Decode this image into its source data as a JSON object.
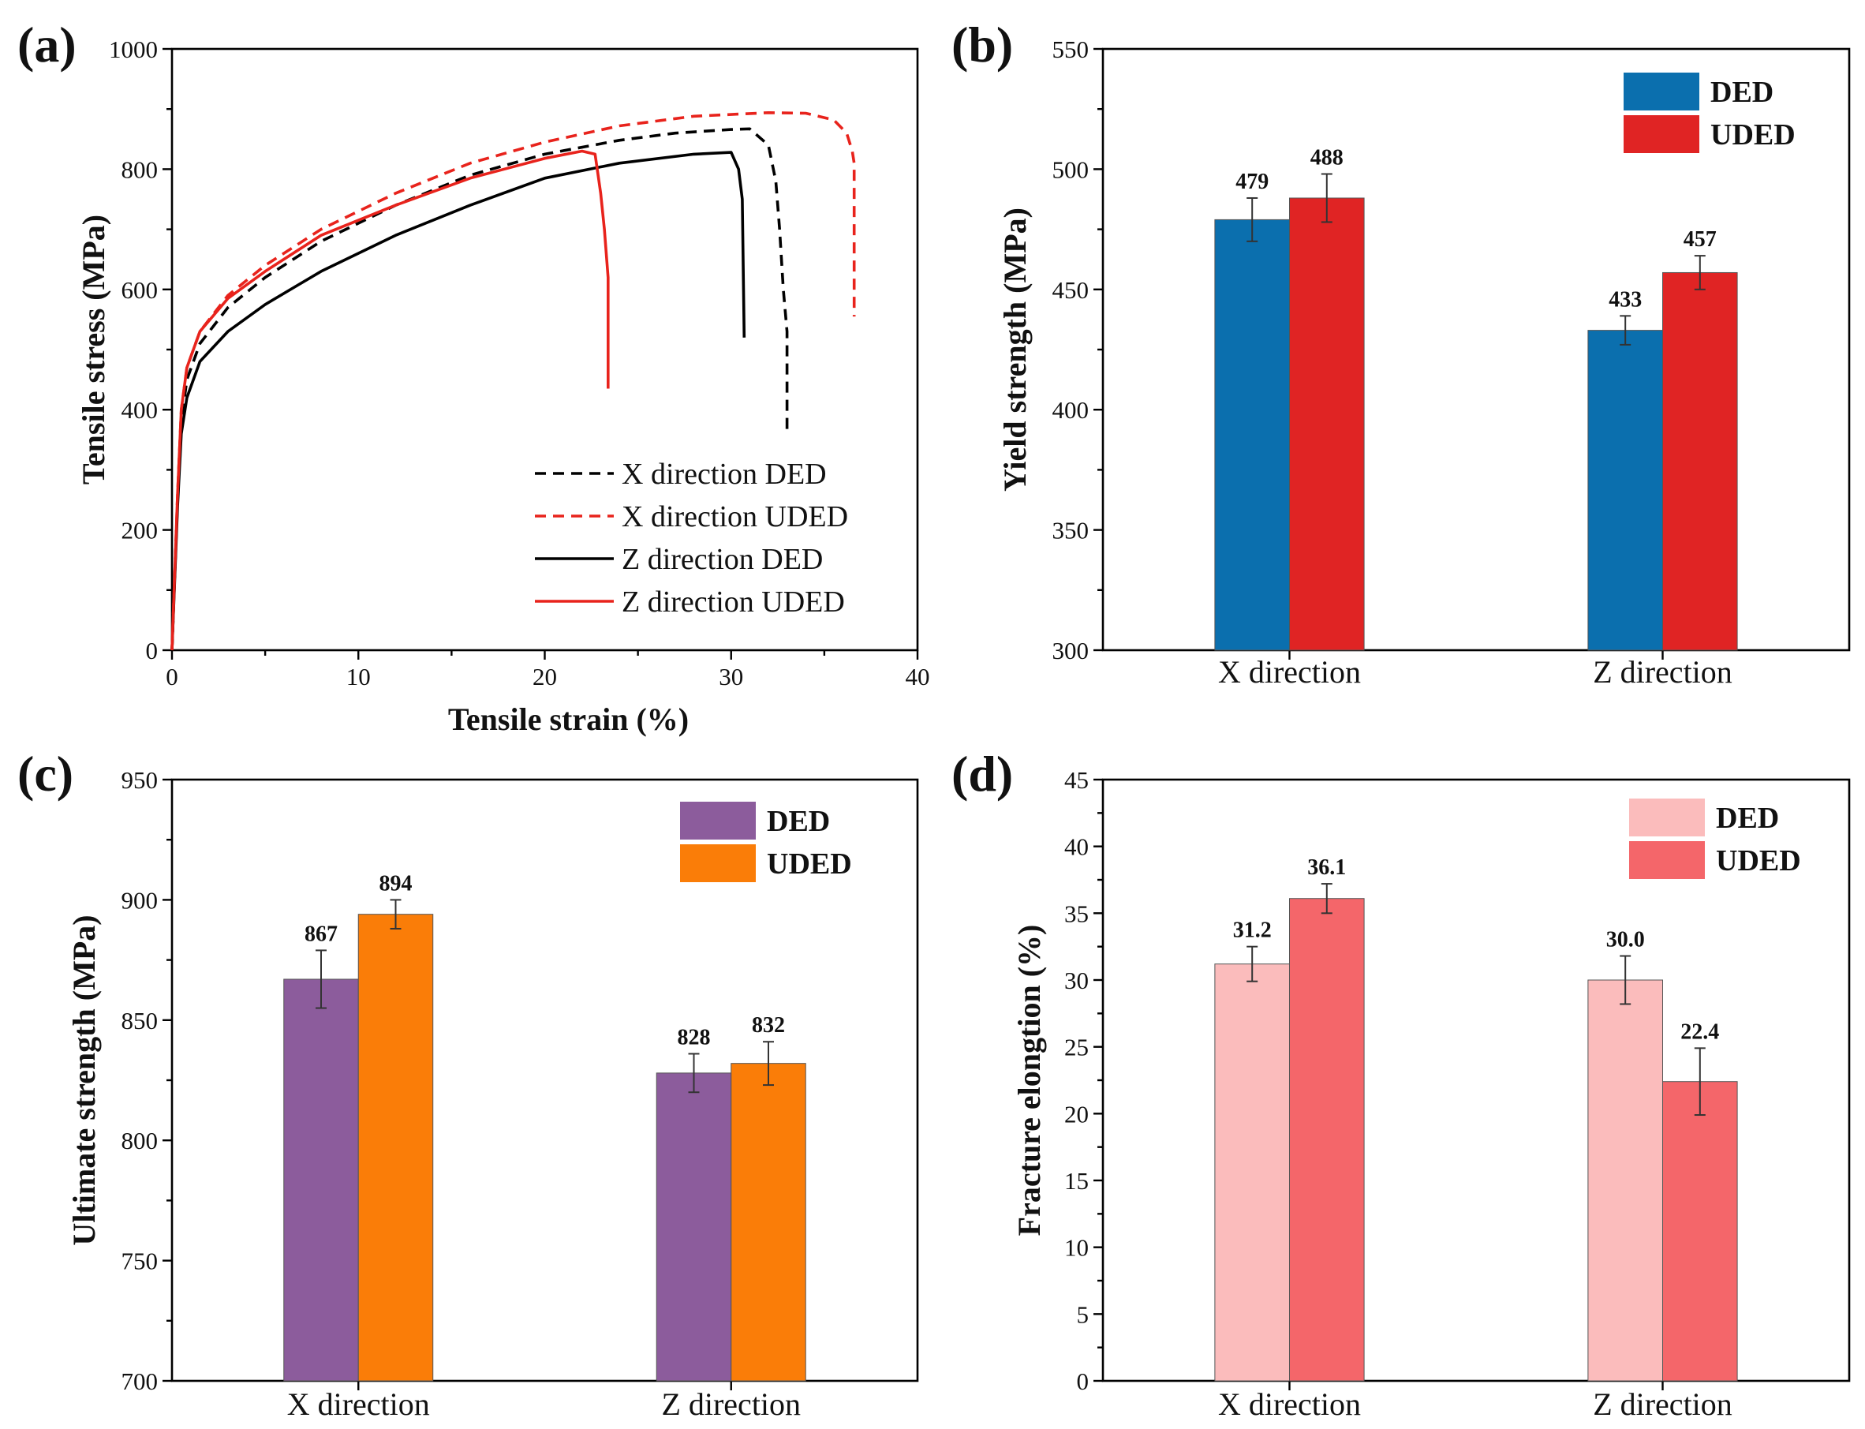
{
  "chart_data": [
    {
      "type": "line",
      "panel_label": "(a)",
      "xlabel": "Tensile strain (%)",
      "ylabel": "Tensile stress (MPa)",
      "xlim": [
        0,
        40
      ],
      "ylim": [
        0,
        1000
      ],
      "xticks": [
        0,
        10,
        20,
        30,
        40
      ],
      "yticks": [
        0,
        200,
        400,
        600,
        800,
        1000
      ],
      "legend_position": "bottom-right",
      "series": [
        {
          "name": "X direction DED",
          "color": "#000000",
          "style": "dashed",
          "points": [
            [
              0,
              0
            ],
            [
              0.3,
              250
            ],
            [
              0.5,
              380
            ],
            [
              0.8,
              450
            ],
            [
              1.5,
              510
            ],
            [
              3,
              570
            ],
            [
              5,
              620
            ],
            [
              8,
              680
            ],
            [
              12,
              740
            ],
            [
              16,
              790
            ],
            [
              20,
              825
            ],
            [
              24,
              848
            ],
            [
              27,
              860
            ],
            [
              30,
              866
            ],
            [
              31,
              867
            ],
            [
              32,
              840
            ],
            [
              32.4,
              780
            ],
            [
              32.6,
              700
            ],
            [
              32.8,
              600
            ],
            [
              33,
              530
            ],
            [
              33,
              365
            ]
          ]
        },
        {
          "name": "X direction UDED",
          "color": "#e8231c",
          "style": "dashed",
          "points": [
            [
              0,
              0
            ],
            [
              0.3,
              260
            ],
            [
              0.5,
              400
            ],
            [
              0.8,
              470
            ],
            [
              1.5,
              530
            ],
            [
              3,
              590
            ],
            [
              5,
              640
            ],
            [
              8,
              700
            ],
            [
              12,
              760
            ],
            [
              16,
              810
            ],
            [
              20,
              845
            ],
            [
              24,
              872
            ],
            [
              28,
              888
            ],
            [
              32,
              894
            ],
            [
              34,
              893
            ],
            [
              35.5,
              882
            ],
            [
              36.2,
              860
            ],
            [
              36.5,
              830
            ],
            [
              36.6,
              810
            ],
            [
              36.6,
              555
            ]
          ]
        },
        {
          "name": "Z direction DED",
          "color": "#000000",
          "style": "solid",
          "points": [
            [
              0,
              0
            ],
            [
              0.3,
              240
            ],
            [
              0.5,
              360
            ],
            [
              0.8,
              420
            ],
            [
              1.5,
              480
            ],
            [
              3,
              530
            ],
            [
              5,
              575
            ],
            [
              8,
              630
            ],
            [
              12,
              690
            ],
            [
              16,
              740
            ],
            [
              20,
              785
            ],
            [
              24,
              810
            ],
            [
              28,
              825
            ],
            [
              30,
              828
            ],
            [
              30.4,
              800
            ],
            [
              30.6,
              750
            ],
            [
              30.7,
              520
            ]
          ]
        },
        {
          "name": "Z direction UDED",
          "color": "#e8231c",
          "style": "solid",
          "points": [
            [
              0,
              0
            ],
            [
              0.3,
              260
            ],
            [
              0.5,
              400
            ],
            [
              0.8,
              470
            ],
            [
              1.5,
              530
            ],
            [
              3,
              585
            ],
            [
              5,
              630
            ],
            [
              8,
              690
            ],
            [
              12,
              740
            ],
            [
              16,
              785
            ],
            [
              20,
              818
            ],
            [
              22,
              830
            ],
            [
              22.7,
              825
            ],
            [
              23,
              760
            ],
            [
              23.2,
              700
            ],
            [
              23.4,
              620
            ],
            [
              23.4,
              435
            ]
          ]
        }
      ]
    },
    {
      "type": "bar",
      "panel_label": "(b)",
      "ylabel": "Yield strength (MPa)",
      "categories": [
        "X direction",
        "Z direction"
      ],
      "ylim": [
        300,
        550
      ],
      "yticks": [
        300,
        350,
        400,
        450,
        500,
        550
      ],
      "legend_position": "top-right",
      "series": [
        {
          "name": "DED",
          "color": "#0b6fae",
          "values": [
            479,
            433
          ],
          "errors": [
            9,
            6
          ],
          "labels": [
            "479",
            "433"
          ]
        },
        {
          "name": "UDED",
          "color": "#e02424",
          "values": [
            488,
            457
          ],
          "errors": [
            10,
            7
          ],
          "labels": [
            "488",
            "457"
          ]
        }
      ]
    },
    {
      "type": "bar",
      "panel_label": "(c)",
      "ylabel": "Ultimate strength (MPa)",
      "categories": [
        "X direction",
        "Z direction"
      ],
      "ylim": [
        700,
        950
      ],
      "yticks": [
        700,
        750,
        800,
        850,
        900,
        950
      ],
      "legend_position": "top-right",
      "series": [
        {
          "name": "DED",
          "color": "#8c5c9c",
          "values": [
            867,
            828
          ],
          "errors": [
            12,
            8
          ],
          "labels": [
            "867",
            "828"
          ]
        },
        {
          "name": "UDED",
          "color": "#fa7d08",
          "values": [
            894,
            832
          ],
          "errors": [
            6,
            9
          ],
          "labels": [
            "894",
            "832"
          ]
        }
      ]
    },
    {
      "type": "bar",
      "panel_label": "(d)",
      "ylabel": "Fracture elongtion (%)",
      "categories": [
        "X direction",
        "Z direction"
      ],
      "ylim": [
        0,
        45
      ],
      "yticks": [
        0,
        5,
        10,
        15,
        20,
        25,
        30,
        35,
        40,
        45
      ],
      "legend_position": "top-right",
      "series": [
        {
          "name": "DED",
          "color": "#fbbcbc",
          "values": [
            31.2,
            30.0
          ],
          "errors": [
            1.3,
            1.8
          ],
          "labels": [
            "31.2",
            "30.0"
          ]
        },
        {
          "name": "UDED",
          "color": "#f4666a",
          "values": [
            36.1,
            22.4
          ],
          "errors": [
            1.1,
            2.5
          ],
          "labels": [
            "36.1",
            "22.4"
          ]
        }
      ]
    }
  ]
}
